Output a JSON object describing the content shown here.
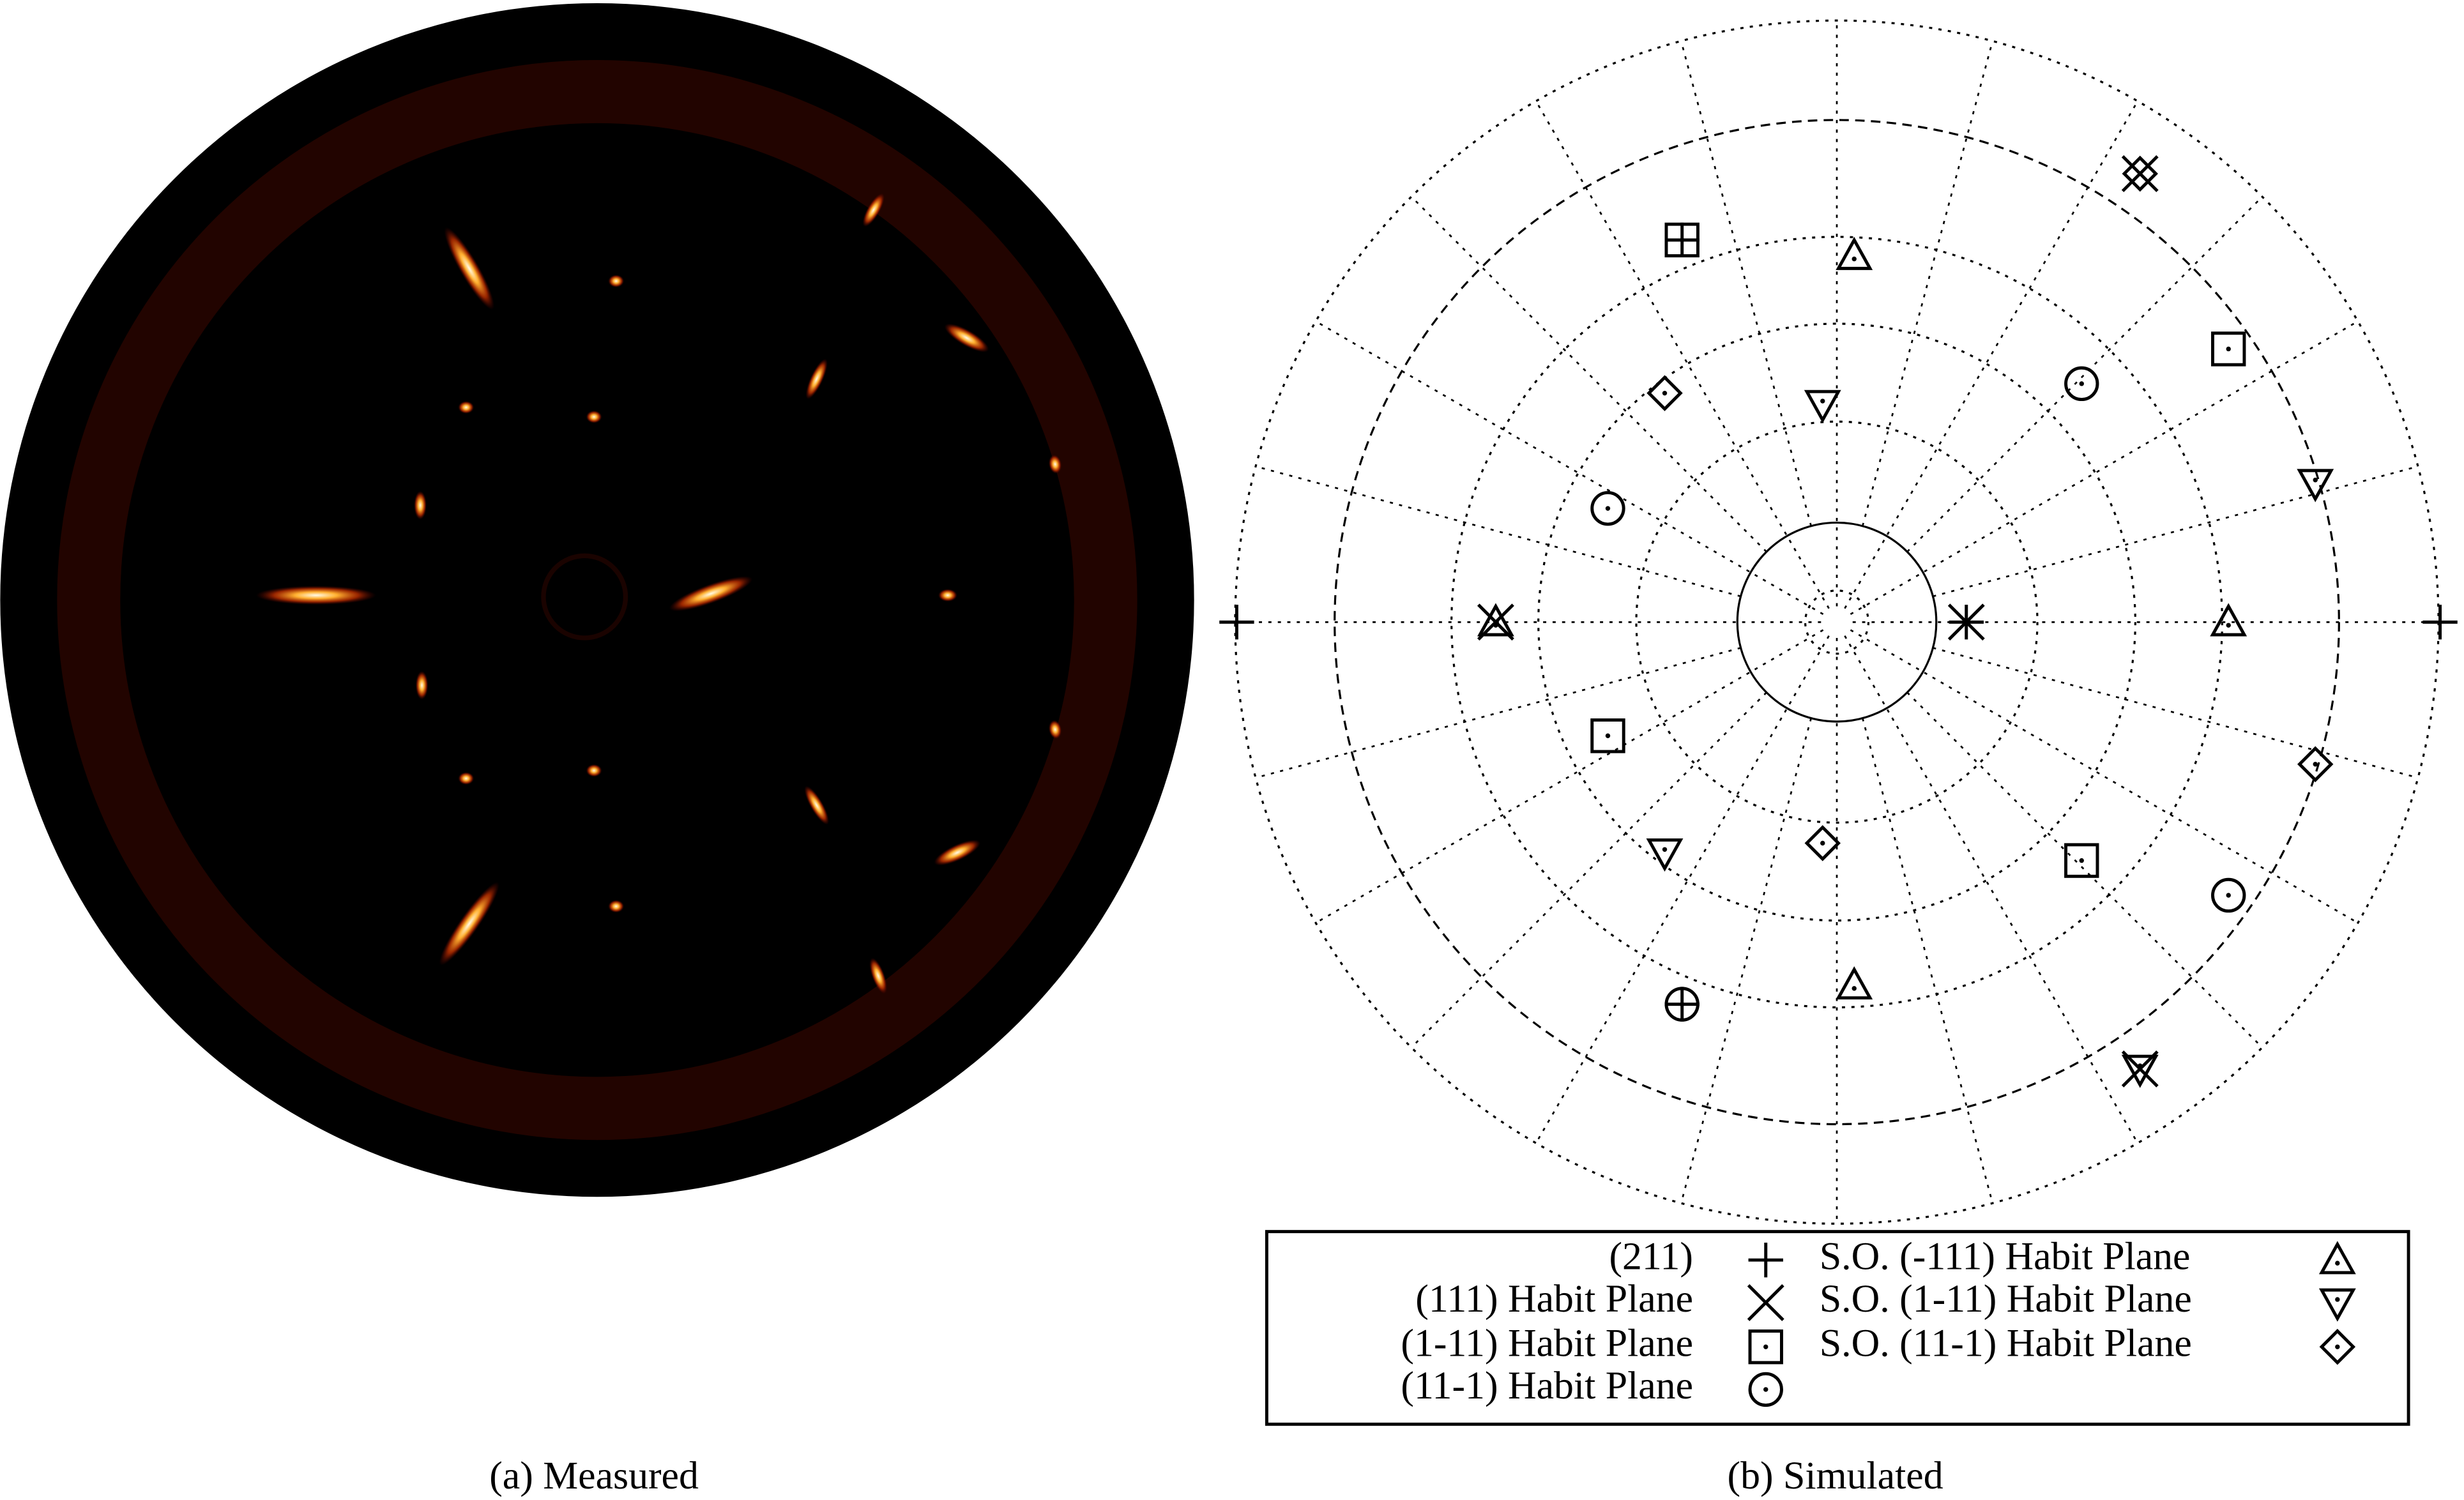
{
  "panels": [
    {
      "caption": "(a) Measured"
    },
    {
      "caption": "(b) Simulated",
      "legend": [
        "(211)",
        "(111) Habit Plane",
        "(1-11) Habit Plane",
        "(11-1) Habit Plane",
        "S.O. (-111) Habit Plane",
        "S.O. (1-11) Habit Plane",
        "S.O. (11-1) Habit Plane"
      ]
    }
  ]
}
